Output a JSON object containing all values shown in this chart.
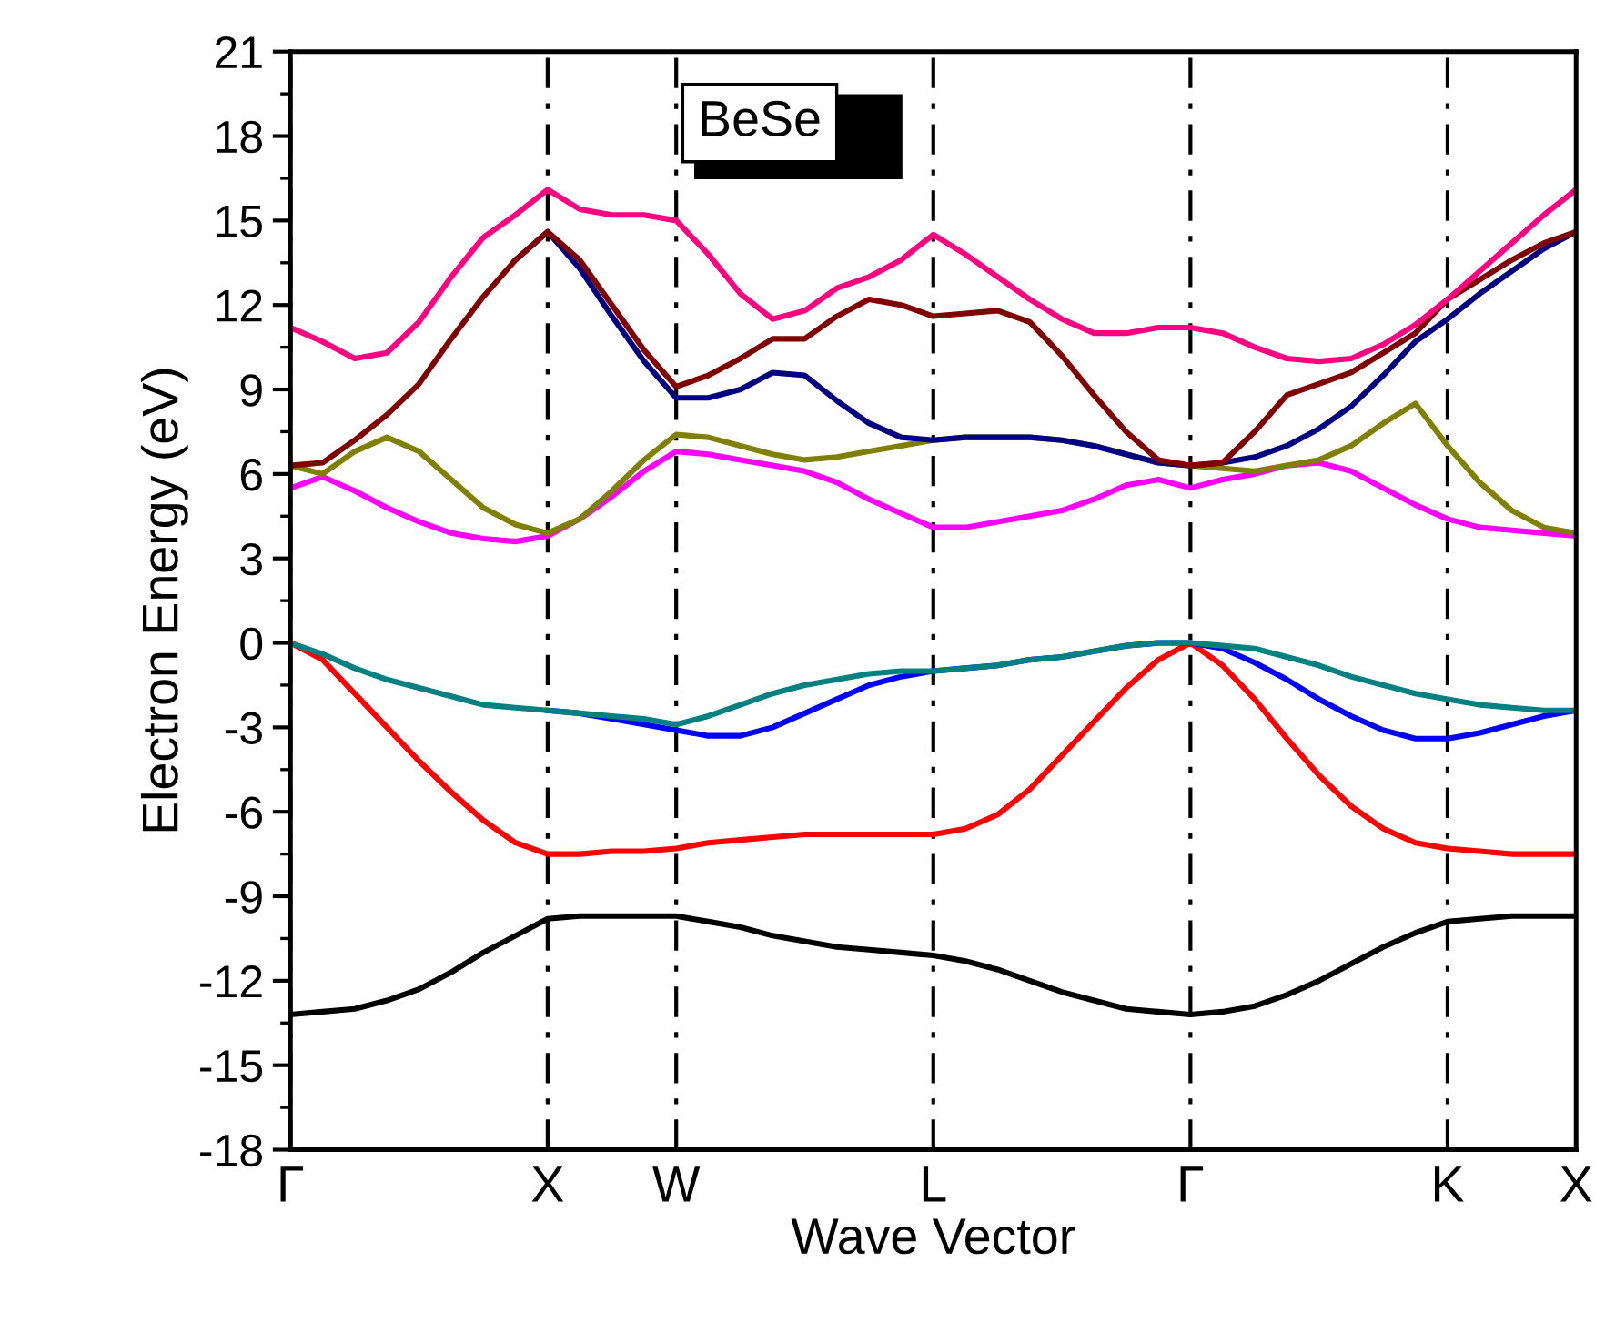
{
  "chart_data": {
    "type": "line",
    "xlabel": "Wave Vector",
    "ylabel": "Electron Energy (eV)",
    "categories": [
      "Γ",
      null,
      null,
      null,
      null,
      null,
      null,
      null,
      "X",
      null,
      null,
      null,
      "W",
      null,
      null,
      null,
      null,
      null,
      null,
      null,
      "L",
      null,
      null,
      null,
      null,
      null,
      null,
      null,
      "Γ",
      null,
      null,
      null,
      null,
      null,
      null,
      null,
      "K",
      null,
      null,
      null,
      "X"
    ],
    "ylim": [
      -18,
      21
    ],
    "yticks": [
      -18,
      -15,
      -12,
      -9,
      -6,
      -3,
      0,
      3,
      6,
      9,
      12,
      15,
      18,
      21
    ],
    "grid": "x",
    "marker": "none",
    "line_style": "solid",
    "annotations": [
      "BeSe"
    ],
    "series": [
      {
        "color": "#000000",
        "values": [
          -13.2,
          -13.1,
          -13.0,
          -12.7,
          -12.3,
          -11.7,
          -11.0,
          -10.4,
          -9.8,
          -9.7,
          -9.7,
          -9.7,
          -9.7,
          -9.9,
          -10.1,
          -10.4,
          -10.6,
          -10.8,
          -10.9,
          -11.0,
          -11.1,
          -11.3,
          -11.6,
          -12.0,
          -12.4,
          -12.7,
          -13.0,
          -13.1,
          -13.2,
          -13.1,
          -12.9,
          -12.5,
          -12.0,
          -11.4,
          -10.8,
          -10.3,
          -9.9,
          -9.8,
          -9.7,
          -9.7,
          -9.7
        ]
      },
      {
        "color": "#ff0000",
        "values": [
          0,
          -0.6,
          -1.8,
          -3.0,
          -4.2,
          -5.3,
          -6.3,
          -7.1,
          -7.5,
          -7.5,
          -7.4,
          -7.4,
          -7.3,
          -7.1,
          -7.0,
          -6.9,
          -6.8,
          -6.8,
          -6.8,
          -6.8,
          -6.8,
          -6.6,
          -6.1,
          -5.2,
          -4.0,
          -2.8,
          -1.6,
          -0.6,
          0,
          -0.8,
          -2.0,
          -3.4,
          -4.7,
          -5.8,
          -6.6,
          -7.1,
          -7.3,
          -7.4,
          -7.5,
          -7.5,
          -7.5
        ]
      },
      {
        "color": "#0000ff",
        "values": [
          null,
          null,
          null,
          null,
          null,
          null,
          null,
          null,
          -2.4,
          -2.5,
          -2.7,
          -2.9,
          -3.1,
          -3.3,
          -3.3,
          -3.0,
          -2.5,
          -2.0,
          -1.5,
          -1.2,
          -1.0,
          -0.9,
          -0.8,
          -0.6,
          -0.5,
          -0.3,
          -0.1,
          0,
          0,
          -0.2,
          -0.7,
          -1.3,
          -2.0,
          -2.6,
          -3.1,
          -3.4,
          -3.4,
          -3.2,
          -2.9,
          -2.6,
          -2.4
        ]
      },
      {
        "color": "#008080",
        "values": [
          0,
          -0.4,
          -0.9,
          -1.3,
          -1.6,
          -1.9,
          -2.2,
          -2.3,
          -2.4,
          -2.5,
          -2.6,
          -2.7,
          -2.9,
          -2.6,
          -2.2,
          -1.8,
          -1.5,
          -1.3,
          -1.1,
          -1.0,
          -1.0,
          -0.9,
          -0.8,
          -0.6,
          -0.5,
          -0.3,
          -0.1,
          0,
          0,
          -0.1,
          -0.2,
          -0.5,
          -0.8,
          -1.2,
          -1.5,
          -1.8,
          -2.0,
          -2.2,
          -2.3,
          -2.4,
          -2.4
        ]
      },
      {
        "color": "#ff00ff",
        "values": [
          5.5,
          5.9,
          5.4,
          4.8,
          4.3,
          3.9,
          3.7,
          3.6,
          3.8,
          4.4,
          5.2,
          6.1,
          6.8,
          6.7,
          6.5,
          6.3,
          6.1,
          5.7,
          5.1,
          4.6,
          4.1,
          4.1,
          4.3,
          4.5,
          4.7,
          5.1,
          5.6,
          5.8,
          5.5,
          5.8,
          6.0,
          6.3,
          6.4,
          6.1,
          5.5,
          4.9,
          4.4,
          4.1,
          4.0,
          3.9,
          3.8
        ]
      },
      {
        "color": "#808000",
        "values": [
          6.3,
          6.0,
          6.8,
          7.3,
          6.8,
          5.8,
          4.8,
          4.2,
          3.9,
          4.4,
          5.4,
          6.5,
          7.4,
          7.3,
          7.0,
          6.7,
          6.5,
          6.6,
          6.8,
          7.0,
          7.2,
          7.3,
          7.3,
          7.3,
          7.2,
          7.0,
          6.7,
          6.4,
          6.3,
          6.2,
          6.1,
          6.3,
          6.5,
          7.0,
          7.8,
          8.5,
          7.0,
          5.7,
          4.7,
          4.1,
          3.9
        ]
      },
      {
        "color": "#000080",
        "values": [
          null,
          null,
          null,
          null,
          null,
          null,
          null,
          13.6,
          14.6,
          13.3,
          11.6,
          10.0,
          8.7,
          8.7,
          9.0,
          9.6,
          9.5,
          8.6,
          7.8,
          7.3,
          7.2,
          7.3,
          7.3,
          7.3,
          7.2,
          7.0,
          6.7,
          6.4,
          6.3,
          6.4,
          6.6,
          7.0,
          7.6,
          8.4,
          9.5,
          10.7,
          11.5,
          12.4,
          13.2,
          14.0,
          14.6
        ]
      },
      {
        "color": "#800000",
        "values": [
          6.3,
          6.4,
          7.2,
          8.1,
          9.2,
          10.8,
          12.3,
          13.6,
          14.6,
          13.6,
          12.0,
          10.4,
          9.1,
          9.5,
          10.1,
          10.8,
          10.8,
          11.6,
          12.2,
          12.0,
          11.6,
          11.7,
          11.8,
          11.4,
          10.2,
          8.8,
          7.5,
          6.5,
          6.3,
          6.4,
          7.5,
          8.8,
          9.2,
          9.6,
          10.3,
          11.0,
          12.2,
          12.9,
          13.6,
          14.2,
          14.6
        ]
      },
      {
        "color": "#ff0080",
        "values": [
          11.2,
          10.7,
          10.1,
          10.3,
          11.4,
          13.0,
          14.4,
          15.2,
          16.1,
          15.4,
          15.2,
          15.2,
          15.0,
          13.8,
          12.4,
          11.5,
          11.8,
          12.6,
          13.0,
          13.6,
          14.5,
          13.8,
          13.0,
          12.2,
          11.5,
          11.0,
          11.0,
          11.2,
          11.2,
          11.0,
          10.5,
          10.1,
          10.0,
          10.1,
          10.6,
          11.3,
          12.2,
          13.2,
          14.2,
          15.2,
          16.1
        ]
      }
    ]
  }
}
